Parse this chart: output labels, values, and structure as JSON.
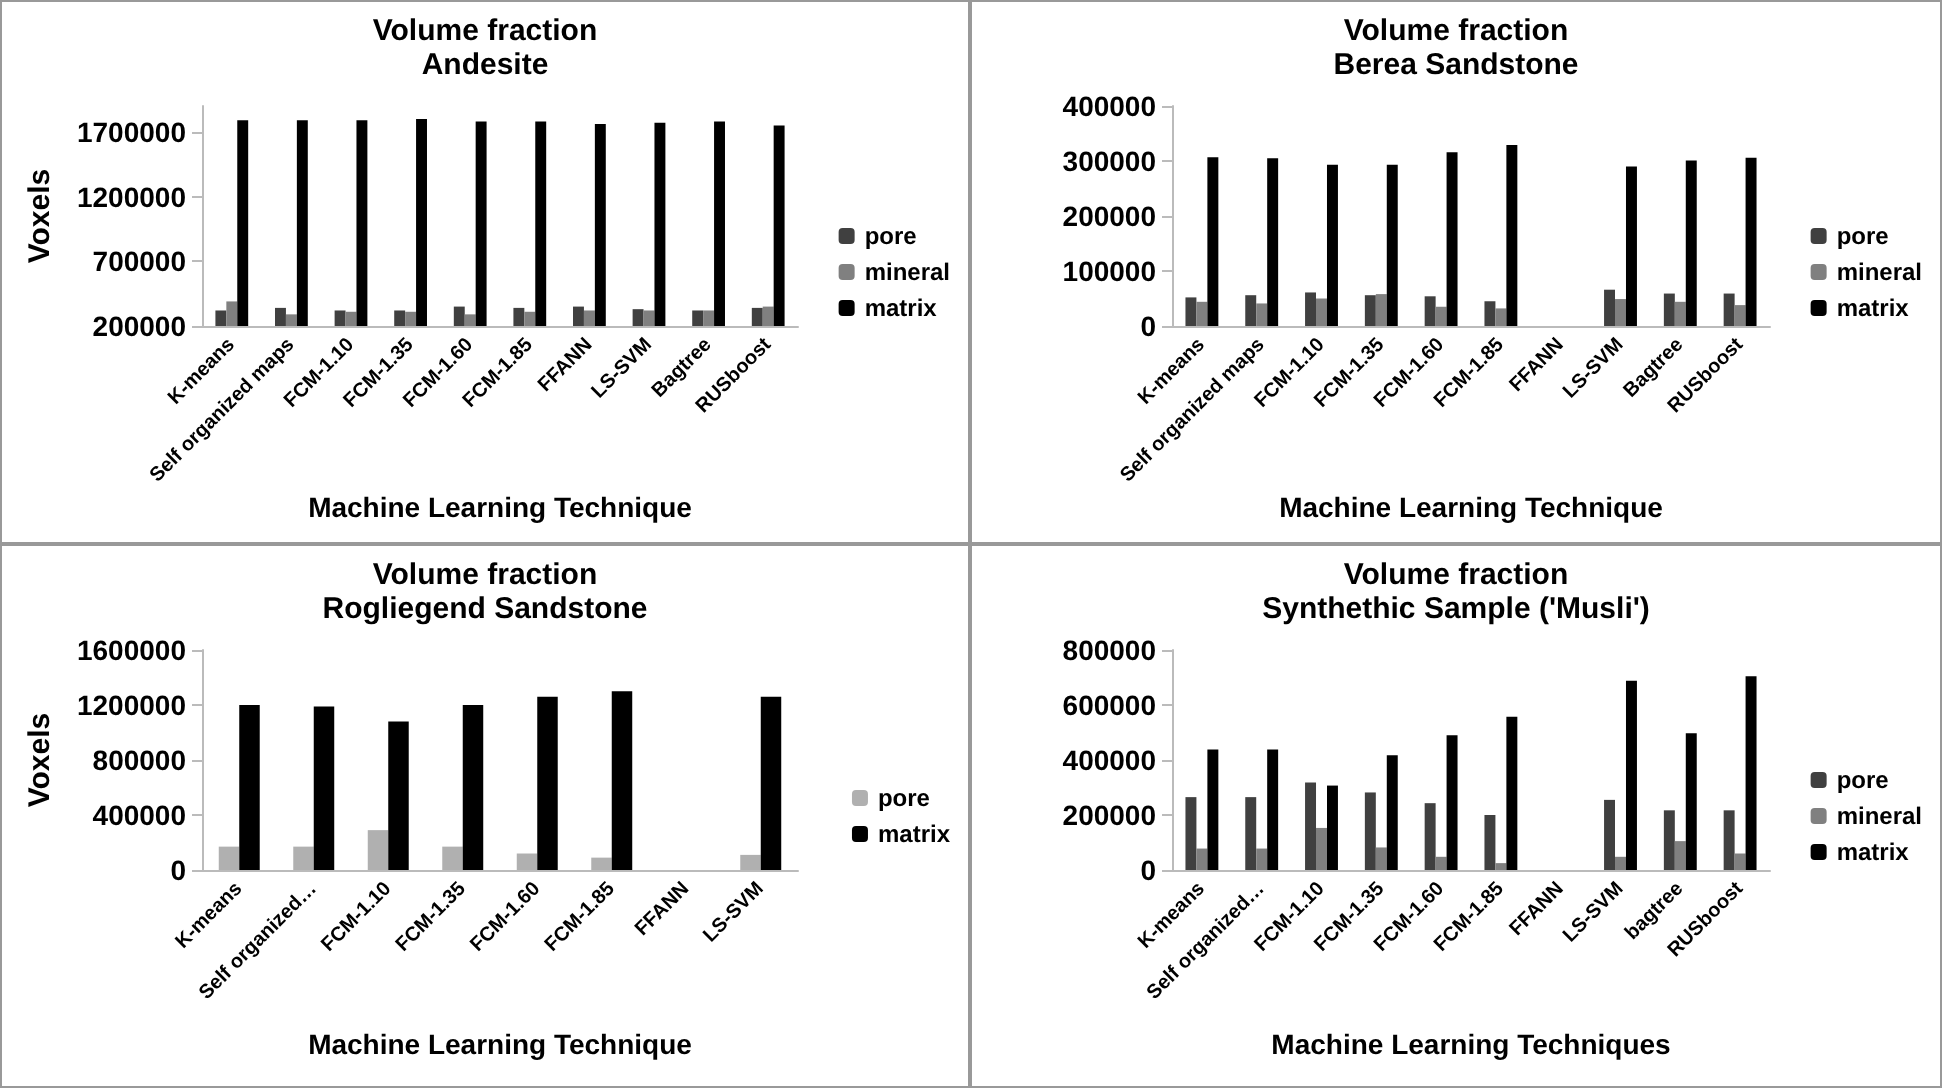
{
  "chart_data": [
    {
      "type": "bar",
      "title": "Volume fraction",
      "subtitle": "Andesite",
      "xlabel": "Machine Learning Technique",
      "ylabel": "Voxels",
      "legend": "right",
      "categories": [
        "K-means",
        "Self organized maps",
        "FCM-1.10",
        "FCM-1.35",
        "FCM-1.60",
        "FCM-1.85",
        "FFANN",
        "LS-SVM",
        "Bagtree",
        "RUSboost"
      ],
      "ylim": [
        200000,
        1900000
      ],
      "yticks": [
        200000,
        700000,
        1200000,
        1700000
      ],
      "series": [
        {
          "name": "pore",
          "color": "#404040",
          "values": [
            320000,
            340000,
            320000,
            320000,
            350000,
            340000,
            350000,
            330000,
            320000,
            340000
          ]
        },
        {
          "name": "mineral",
          "color": "#808080",
          "values": [
            390000,
            290000,
            310000,
            310000,
            290000,
            310000,
            320000,
            320000,
            320000,
            350000
          ]
        },
        {
          "name": "matrix",
          "color": "#000000",
          "values": [
            1790000,
            1790000,
            1790000,
            1800000,
            1780000,
            1780000,
            1760000,
            1770000,
            1780000,
            1750000
          ]
        }
      ]
    },
    {
      "type": "bar",
      "title": "Volume fraction",
      "subtitle": "Berea Sandstone",
      "xlabel": "Machine Learning Technique",
      "legend": "right",
      "categories": [
        "K-means",
        "Self organized maps",
        "FCM-1.10",
        "FCM-1.35",
        "FCM-1.60",
        "FCM-1.85",
        "FFANN",
        "LS-SVM",
        "Bagtree",
        "RUSboost"
      ],
      "ylim": [
        0,
        400000
      ],
      "yticks": [
        0,
        100000,
        200000,
        300000,
        400000
      ],
      "series": [
        {
          "name": "pore",
          "color": "#404040",
          "values": [
            52000,
            56000,
            61000,
            56000,
            54000,
            45000,
            null,
            66000,
            59000,
            59000
          ]
        },
        {
          "name": "mineral",
          "color": "#808080",
          "values": [
            44000,
            41000,
            50000,
            58000,
            35000,
            32000,
            null,
            49000,
            44000,
            38000
          ]
        },
        {
          "name": "matrix",
          "color": "#000000",
          "values": [
            307000,
            305000,
            293000,
            293000,
            316000,
            329000,
            null,
            290000,
            301000,
            306000
          ]
        }
      ]
    },
    {
      "type": "bar",
      "title": "Volume fraction",
      "subtitle": "Rogliegend Sandstone",
      "xlabel": "Machine Learning Technique",
      "ylabel": "Voxels",
      "legend": "right",
      "categories": [
        "K-means",
        "Self organized…",
        "FCM-1.10",
        "FCM-1.35",
        "FCM-1.60",
        "FCM-1.85",
        "FFANN",
        "LS-SVM"
      ],
      "ylim": [
        0,
        1600000
      ],
      "yticks": [
        0,
        400000,
        800000,
        1200000,
        1600000
      ],
      "series": [
        {
          "name": "pore",
          "color": "#b0b0b0",
          "values": [
            170000,
            170000,
            290000,
            170000,
            120000,
            90000,
            null,
            110000
          ]
        },
        {
          "name": "matrix",
          "color": "#000000",
          "values": [
            1200000,
            1190000,
            1080000,
            1200000,
            1260000,
            1300000,
            null,
            1260000
          ]
        }
      ]
    },
    {
      "type": "bar",
      "title": "Volume fraction",
      "subtitle": "Synthethic Sample ('Musli')",
      "xlabel": "Machine Learning Techniques",
      "legend": "right",
      "categories": [
        "K-means",
        "Self organized…",
        "FCM-1.10",
        "FCM-1.35",
        "FCM-1.60",
        "FCM-1.85",
        "FFANN",
        "LS-SVM",
        "bagtree",
        "RUSboost"
      ],
      "ylim": [
        0,
        800000
      ],
      "yticks": [
        0,
        200000,
        400000,
        600000,
        800000
      ],
      "series": [
        {
          "name": "pore",
          "color": "#404040",
          "values": [
            265000,
            265000,
            318000,
            282000,
            243000,
            200000,
            null,
            255000,
            217000,
            217000
          ]
        },
        {
          "name": "mineral",
          "color": "#808080",
          "values": [
            78000,
            78000,
            153000,
            82000,
            48000,
            25000,
            null,
            48000,
            105000,
            60000
          ]
        },
        {
          "name": "matrix",
          "color": "#000000",
          "values": [
            438000,
            438000,
            307000,
            417000,
            490000,
            557000,
            null,
            688000,
            497000,
            705000
          ]
        }
      ]
    }
  ]
}
